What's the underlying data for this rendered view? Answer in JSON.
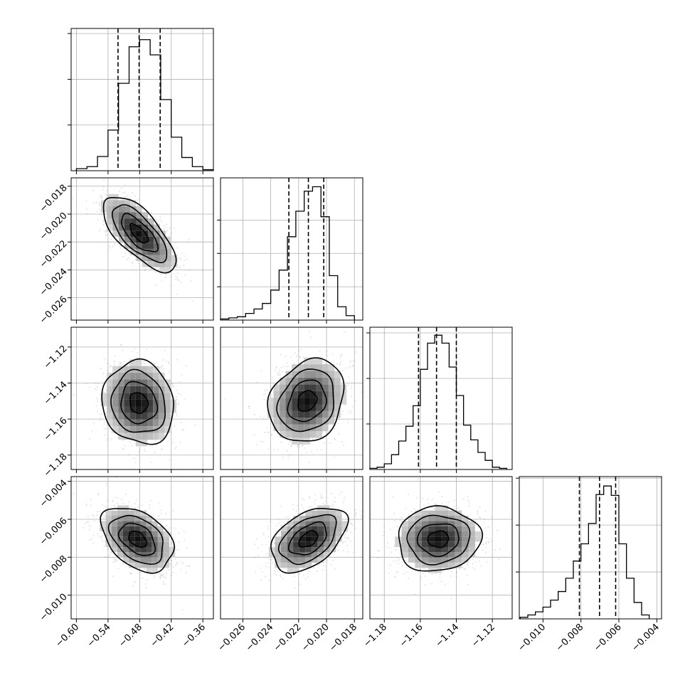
{
  "chart_data": {
    "type": "corner",
    "parameters": [
      {
        "range": [
          -0.61,
          -0.34
        ],
        "ticks": [
          -0.6,
          -0.54,
          -0.48,
          -0.42,
          -0.36
        ],
        "tick_labels": [
          "−0.60",
          "−0.54",
          "−0.48",
          "−0.42",
          "−0.36"
        ],
        "quantiles": [
          -0.521,
          -0.481,
          -0.441
        ],
        "hist_bins": [
          -0.6,
          -0.58,
          -0.56,
          -0.54,
          -0.52,
          -0.5,
          -0.48,
          -0.46,
          -0.44,
          -0.42,
          -0.4,
          -0.38,
          -0.36,
          -0.34
        ],
        "hist_counts": [
          2,
          4,
          14,
          40,
          86,
          122,
          129,
          114,
          70,
          33,
          13,
          4,
          1
        ],
        "hist_ymax": 140,
        "hist_yticks": [
          45,
          90,
          135
        ]
      },
      {
        "range": [
          -0.0276,
          -0.0174
        ],
        "ticks": [
          -0.026,
          -0.024,
          -0.022,
          -0.02,
          -0.018
        ],
        "tick_labels": [
          "−0.026",
          "−0.024",
          "−0.022",
          "−0.020",
          "−0.018"
        ],
        "quantiles": [
          -0.0227,
          -0.0213,
          -0.0202
        ],
        "hist_bins": [
          -0.0276,
          -0.027,
          -0.0264,
          -0.0258,
          -0.0252,
          -0.0246,
          -0.024,
          -0.0234,
          -0.0228,
          -0.0222,
          -0.0216,
          -0.021,
          -0.0204,
          -0.0198,
          -0.0192,
          -0.0186,
          -0.018
        ],
        "hist_counts": [
          1,
          2,
          3,
          6,
          10,
          15,
          27,
          45,
          75,
          98,
          116,
          120,
          93,
          40,
          12,
          4
        ],
        "hist_ymax": 128,
        "hist_yticks": [
          30,
          60,
          90
        ]
      },
      {
        "range": [
          -1.188,
          -1.109
        ],
        "ticks": [
          -1.18,
          -1.16,
          -1.14,
          -1.12
        ],
        "tick_labels": [
          "−1.18",
          "−1.16",
          "−1.14",
          "−1.12"
        ],
        "quantiles": [
          -1.161,
          -1.151,
          -1.14
        ],
        "hist_bins": [
          -1.188,
          -1.184,
          -1.18,
          -1.176,
          -1.172,
          -1.168,
          -1.164,
          -1.16,
          -1.156,
          -1.152,
          -1.148,
          -1.144,
          -1.14,
          -1.136,
          -1.132,
          -1.128,
          -1.124,
          -1.12,
          -1.116,
          -1.112
        ],
        "hist_counts": [
          1,
          2,
          5,
          13,
          25,
          38,
          56,
          88,
          111,
          118,
          111,
          90,
          65,
          39,
          26,
          15,
          8,
          2,
          1
        ],
        "hist_ymax": 125,
        "hist_yticks": [
          40,
          80,
          120
        ]
      },
      {
        "range": [
          -0.01125,
          -0.00375
        ],
        "ticks": [
          -0.01,
          -0.008,
          -0.006,
          -0.004
        ],
        "tick_labels": [
          "−0.010",
          "−0.008",
          "−0.006",
          "−0.004"
        ],
        "quantiles": [
          -0.00808,
          -0.00702,
          -0.00617
        ],
        "hist_bins": [
          -0.0112,
          -0.0108,
          -0.0104,
          -0.01,
          -0.0096,
          -0.0092,
          -0.0088,
          -0.0084,
          -0.008,
          -0.0076,
          -0.0072,
          -0.0068,
          -0.0064,
          -0.006,
          -0.0056,
          -0.0052,
          -0.0048,
          -0.0044
        ],
        "hist_counts": [
          2,
          5,
          9,
          15,
          24,
          35,
          52,
          74,
          96,
          122,
          159,
          170,
          158,
          96,
          52,
          21,
          5
        ],
        "hist_ymax": 182,
        "hist_yticks": [
          60,
          120,
          180
        ]
      }
    ],
    "pairs": [
      {
        "x": 0,
        "y": 1,
        "mean": [
          -0.481,
          -0.0214
        ],
        "sd": [
          0.0345,
          0.00135
        ],
        "rho": -0.7
      },
      {
        "x": 0,
        "y": 2,
        "mean": [
          -0.482,
          -1.151
        ],
        "sd": [
          0.034,
          0.0115
        ],
        "rho": -0.1
      },
      {
        "x": 1,
        "y": 2,
        "mean": [
          -0.0214,
          -1.15
        ],
        "sd": [
          0.00135,
          0.0115
        ],
        "rho": 0.2
      },
      {
        "x": 0,
        "y": 3,
        "mean": [
          -0.484,
          -0.00705
        ],
        "sd": [
          0.034,
          0.00085
        ],
        "rho": -0.4
      },
      {
        "x": 1,
        "y": 3,
        "mean": [
          -0.0213,
          -0.00705
        ],
        "sd": [
          0.00135,
          0.00085
        ],
        "rho": 0.45
      },
      {
        "x": 2,
        "y": 3,
        "mean": [
          -1.15,
          -0.00705
        ],
        "sd": [
          0.0115,
          0.00085
        ],
        "rho": 0.05
      }
    ],
    "contour_levels": [
      0.5,
      1.0,
      1.5,
      2.0
    ],
    "grid": true,
    "legend": "none",
    "colors": {
      "line": "#000000",
      "grid": "#b0b0b0",
      "scatter": "#808080",
      "density_max": "#000000"
    }
  }
}
